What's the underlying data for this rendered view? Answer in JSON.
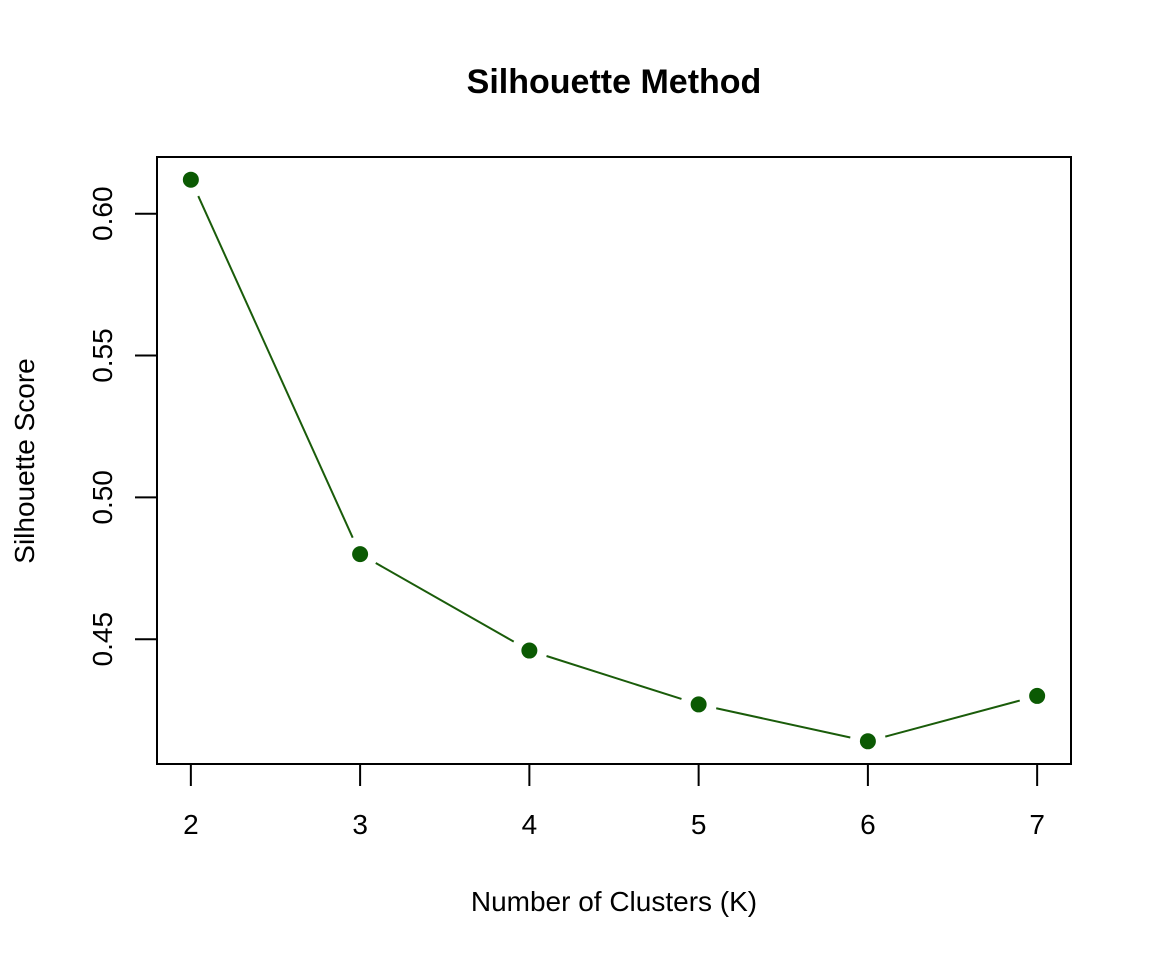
{
  "chart_data": {
    "type": "line",
    "title": "Silhouette Method",
    "xlabel": "Number of Clusters (K)",
    "ylabel": "Silhouette Score",
    "x": [
      2,
      3,
      4,
      5,
      6,
      7
    ],
    "series": [
      {
        "values": [
          0.612,
          0.48,
          0.446,
          0.427,
          0.414,
          0.43
        ]
      }
    ],
    "x_ticks": [
      "2",
      "3",
      "4",
      "5",
      "6",
      "7"
    ],
    "y_ticks": [
      "0.45",
      "0.50",
      "0.55",
      "0.60"
    ],
    "xlim": [
      1.8,
      7.2
    ],
    "ylim": [
      0.406,
      0.62
    ],
    "grid": false,
    "legend": "none",
    "colors": {
      "line": "#1a5c0a",
      "marker": "#0b5a03",
      "axis": "#000000"
    }
  }
}
